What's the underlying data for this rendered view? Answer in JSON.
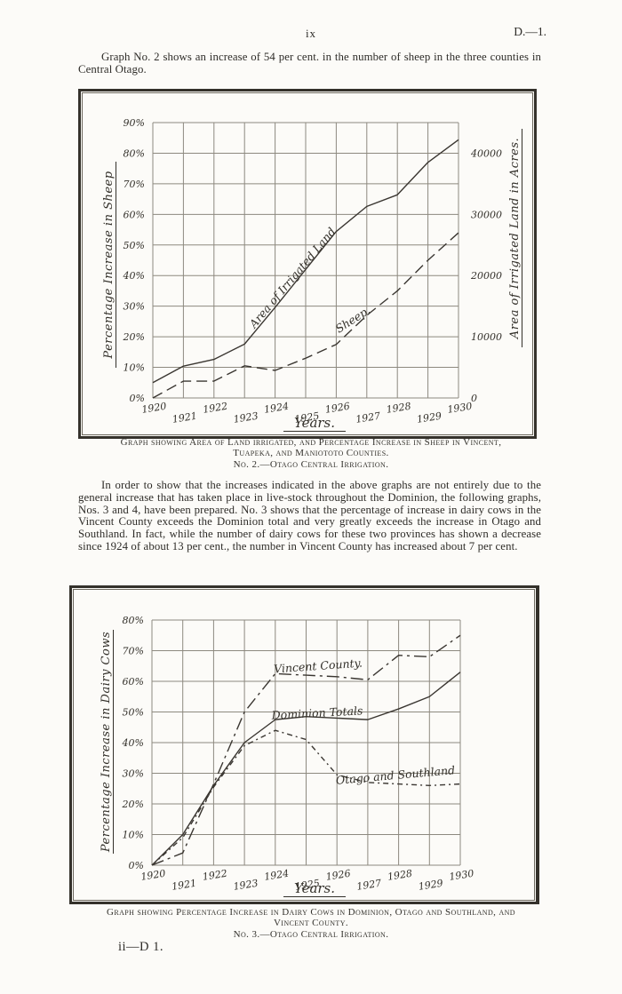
{
  "page": {
    "page_number": "ix",
    "doc_ref": "D.—1.",
    "paragraph1": "Graph No. 2 shows an increase of 54 per cent. in the number of sheep in the three counties in Central Otago.",
    "paragraph2": "In order to show that the increases indicated in the above graphs are not entirely due to the general increase that has taken place in live-stock throughout the Dominion, the following graphs, Nos. 3 and 4, have been prepared.  No. 3 shows that the percentage of increase in dairy cows in the Vincent County exceeds the Dominion total and very greatly exceeds the increase in Otago and Southland. In fact, while the number of dairy cows for these two provinces has shown a decrease since 1924 of about 13 per cent., the number in Vincent County has increased about 7 per cent.",
    "footer_sig": "ii—D 1."
  },
  "figure1": {
    "caption_lines": [
      "Graph showing Area of Land irrigated, and Percentage Increase in Sheep in Vincent,",
      "Tuapeka, and Maniototo Counties.",
      "No. 2.—Otago Central Irrigation."
    ]
  },
  "figure2": {
    "caption_lines": [
      "Graph showing Percentage Increase in Dairy Cows in Dominion, Otago and Southland, and",
      "Vincent County.",
      "No. 3.—Otago Central Irrigation."
    ]
  },
  "colors": {
    "paper": "#fcfbf8",
    "ink": "#2e2c28",
    "grid_line": "#8d897f",
    "curve_line": "#3a3631"
  },
  "chart_data": [
    {
      "type": "line",
      "title": "No. 2.—Otago Central Irrigation",
      "xlabel": "Years.",
      "x": [
        1920,
        1921,
        1922,
        1923,
        1924,
        1925,
        1926,
        1927,
        1928,
        1929,
        1930
      ],
      "left_axis": {
        "label": "Percentage Increase in Sheep",
        "ticks": [
          "0%",
          "10%",
          "20%",
          "30%",
          "40%",
          "50%",
          "60%",
          "70%",
          "80%",
          "90%"
        ],
        "range": [
          0,
          90
        ],
        "unit": "percent"
      },
      "right_axis": {
        "label": "Area of Irrigated Land in Acres.",
        "ticks": [
          "0",
          "10000",
          "20000",
          "30000",
          "40000"
        ],
        "range": [
          0,
          45000
        ],
        "unit": "acres",
        "acres_per_percent": 500
      },
      "grid": true,
      "legend_position": "inline-on-curve",
      "series": [
        {
          "name": "Area of Irrigated Land",
          "axis": "right",
          "style": "solid",
          "values": [
            2500,
            5200,
            6300,
            8800,
            14800,
            21000,
            27200,
            31300,
            33200,
            38500,
            42200
          ]
        },
        {
          "name": "Sheep.",
          "axis": "left",
          "style": "dashed",
          "values": [
            0,
            5.5,
            5.5,
            10.5,
            9,
            13,
            17.5,
            27,
            35,
            45,
            54
          ]
        }
      ]
    },
    {
      "type": "line",
      "title": "No. 3.—Otago Central Irrigation",
      "xlabel": "Years.",
      "x": [
        1920,
        1921,
        1922,
        1923,
        1924,
        1925,
        1926,
        1927,
        1928,
        1929,
        1930
      ],
      "left_axis": {
        "label": "Percentage Increase in Dairy Cows",
        "ticks": [
          "0%",
          "10%",
          "20%",
          "30%",
          "40%",
          "50%",
          "60%",
          "70%",
          "80%"
        ],
        "range": [
          0,
          80
        ],
        "unit": "percent"
      },
      "grid": true,
      "legend_position": "inline-on-curve",
      "series": [
        {
          "name": "Vincent County.",
          "axis": "left",
          "style": "dashdot",
          "values": [
            0,
            4,
            26.5,
            50,
            62.5,
            62,
            61.5,
            60.5,
            68.5,
            68,
            75
          ]
        },
        {
          "name": "Dominion Totals",
          "axis": "left",
          "style": "solid",
          "values": [
            0,
            10,
            26,
            40,
            47.5,
            48.5,
            48,
            47.5,
            51,
            55,
            63
          ]
        },
        {
          "name": "Otago and Southland",
          "axis": "left",
          "style": "dotted",
          "values": [
            0,
            9,
            25.5,
            39,
            44,
            41,
            29.5,
            27,
            26.5,
            26,
            26.5
          ]
        }
      ]
    }
  ]
}
